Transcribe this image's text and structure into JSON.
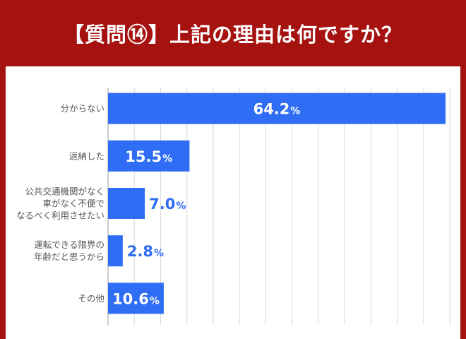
{
  "title": "【質問⑭】上記の理由は何ですか？",
  "colors": {
    "background": "#a5120f",
    "panel": "#ffffff",
    "bar": "#2f6df4",
    "grid": "#d9d9d9",
    "axis": "#999999",
    "label_inside": "#ffffff",
    "label_outside": "#2f6df4",
    "category_text": "#555555"
  },
  "chart_data": {
    "type": "bar",
    "orientation": "horizontal",
    "categories": [
      [
        "分からない"
      ],
      [
        "返納した"
      ],
      [
        "公共交通機関がなく",
        "車がなく不便で",
        "なるべく利用させたい"
      ],
      [
        "運転できる限界の",
        "年齢だと思うから"
      ],
      [
        "その他"
      ]
    ],
    "values": [
      64.2,
      15.5,
      7.0,
      2.8,
      10.6
    ],
    "value_labels": [
      "64.2",
      "15.5",
      "7.0",
      "2.8",
      "10.6"
    ],
    "value_unit": "%",
    "xlim": [
      0,
      65
    ],
    "grid": true
  }
}
